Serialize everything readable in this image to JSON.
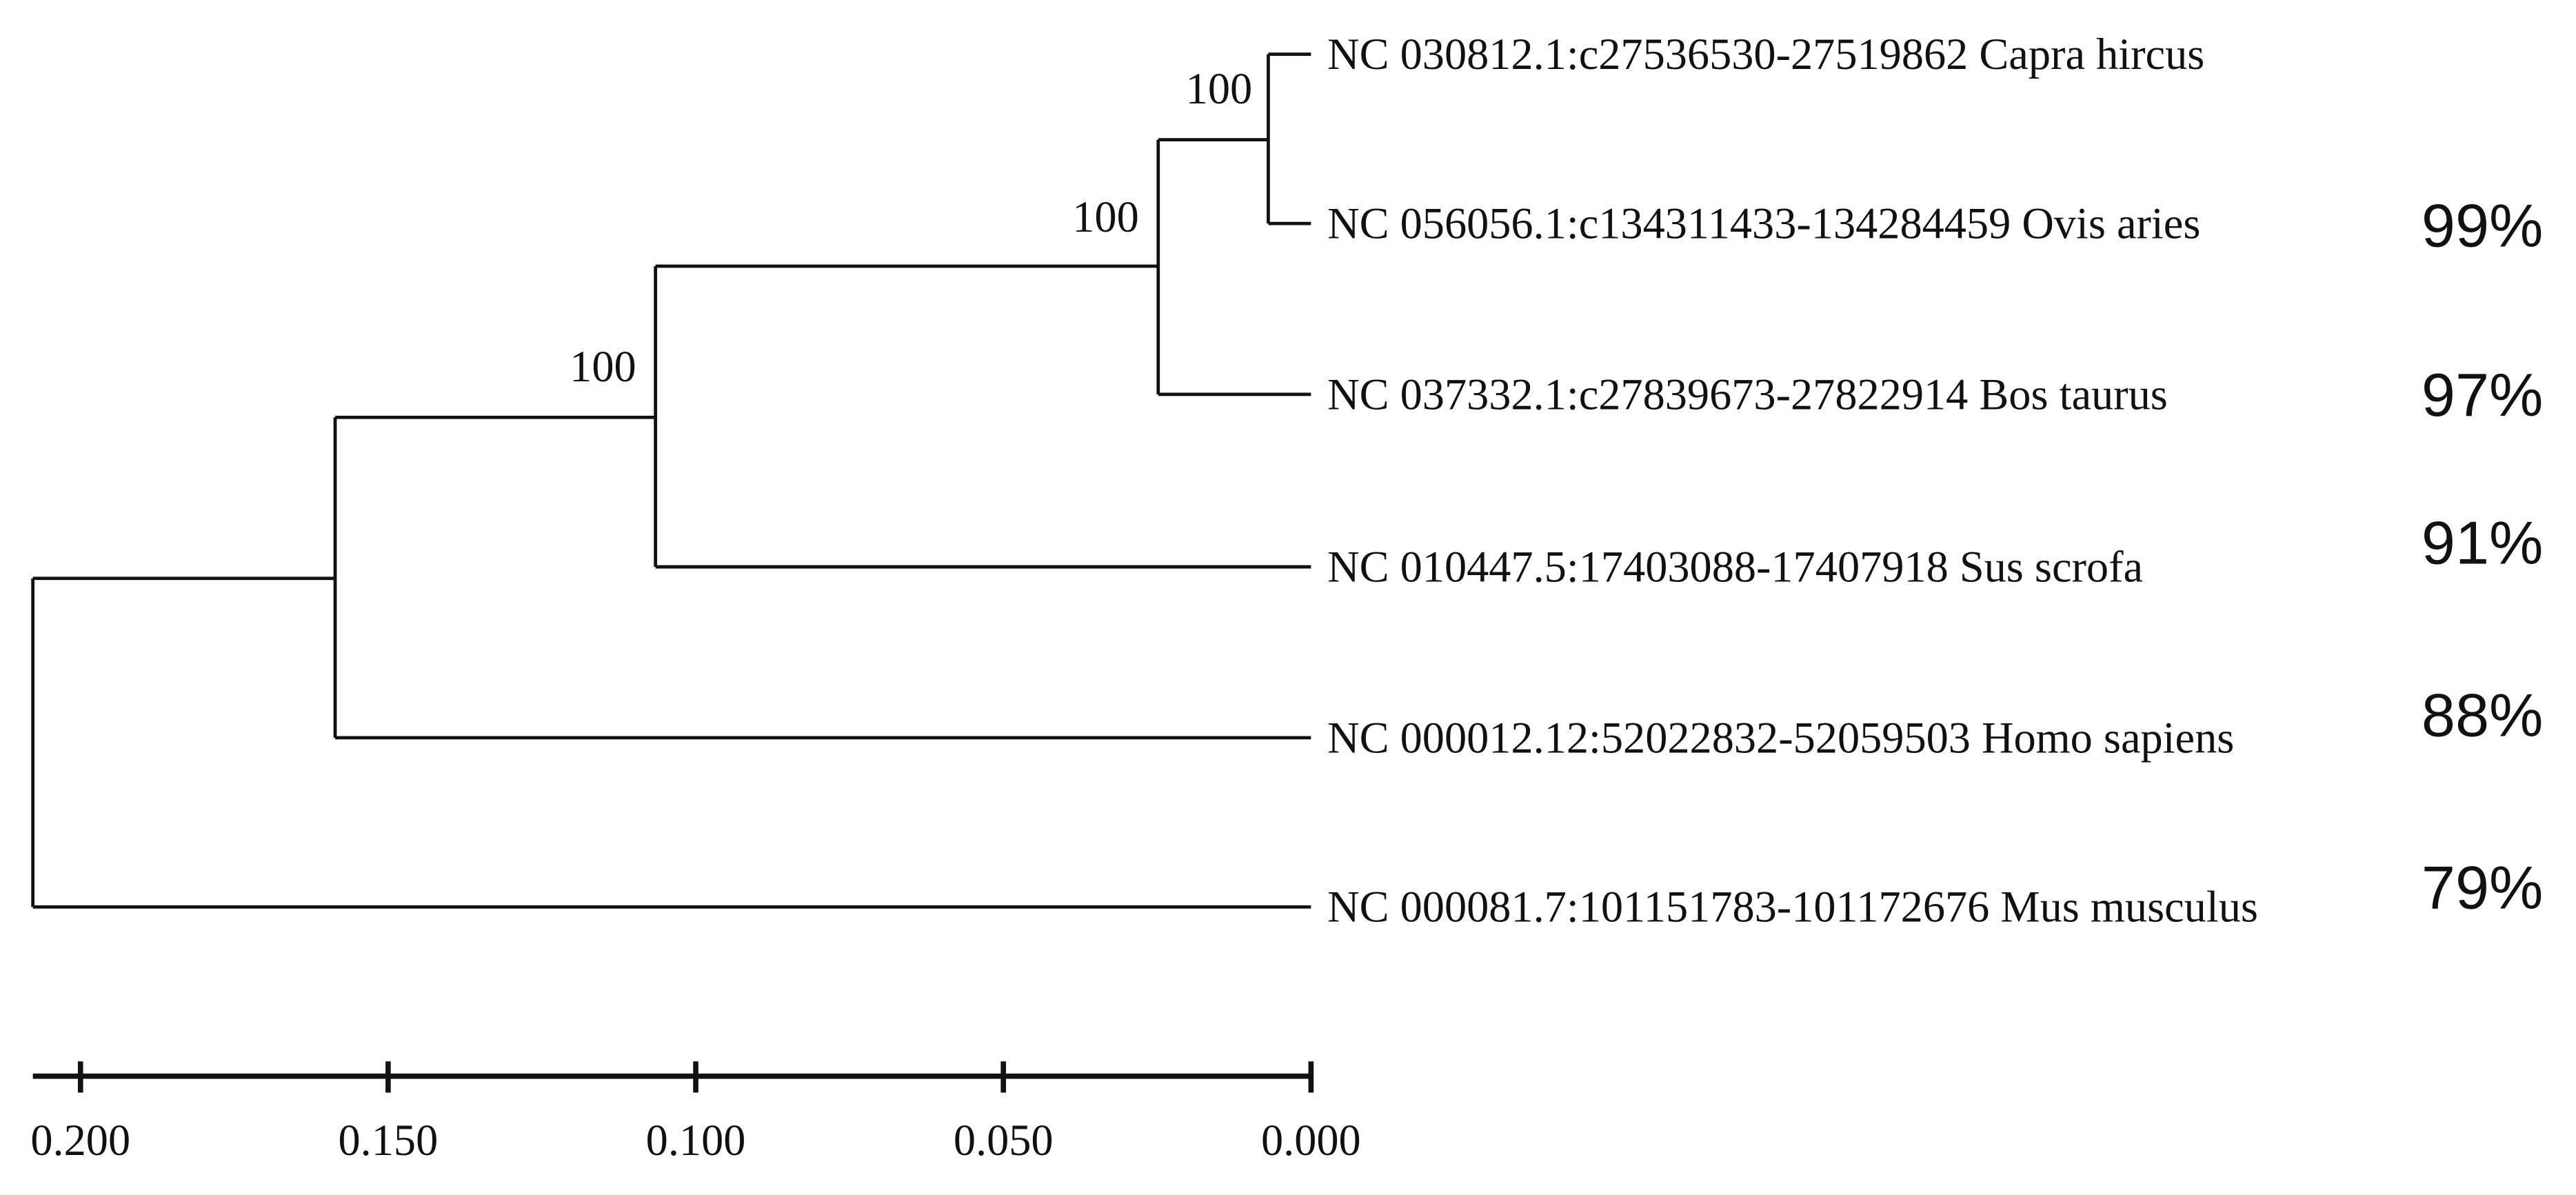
{
  "tree": {
    "leaves": [
      {
        "label": "NC 030812.1:c27536530-27519862 Capra hircus"
      },
      {
        "label": "NC 056056.1:c134311433-134284459 Ovis aries",
        "identity": "99%"
      },
      {
        "label": "NC 037332.1:c27839673-27822914 Bos taurus",
        "identity": "97%"
      },
      {
        "label": "NC 010447.5:17403088-17407918 Sus scrofa",
        "identity": "91%"
      },
      {
        "label": "NC 000012.12:52022832-52059503 Homo sapiens",
        "identity": "88%"
      },
      {
        "label": "NC 000081.7:101151783-101172676 Mus musculus",
        "identity": "79%"
      }
    ],
    "bootstrap": [
      "100",
      "100",
      "100"
    ]
  },
  "scale_axis": {
    "ticks": [
      {
        "value": 0.2,
        "label": "0.200"
      },
      {
        "value": 0.15,
        "label": "0.150"
      },
      {
        "value": 0.1,
        "label": "0.100"
      },
      {
        "value": 0.05,
        "label": "0.050"
      },
      {
        "value": 0,
        "label": "0.000"
      }
    ]
  }
}
